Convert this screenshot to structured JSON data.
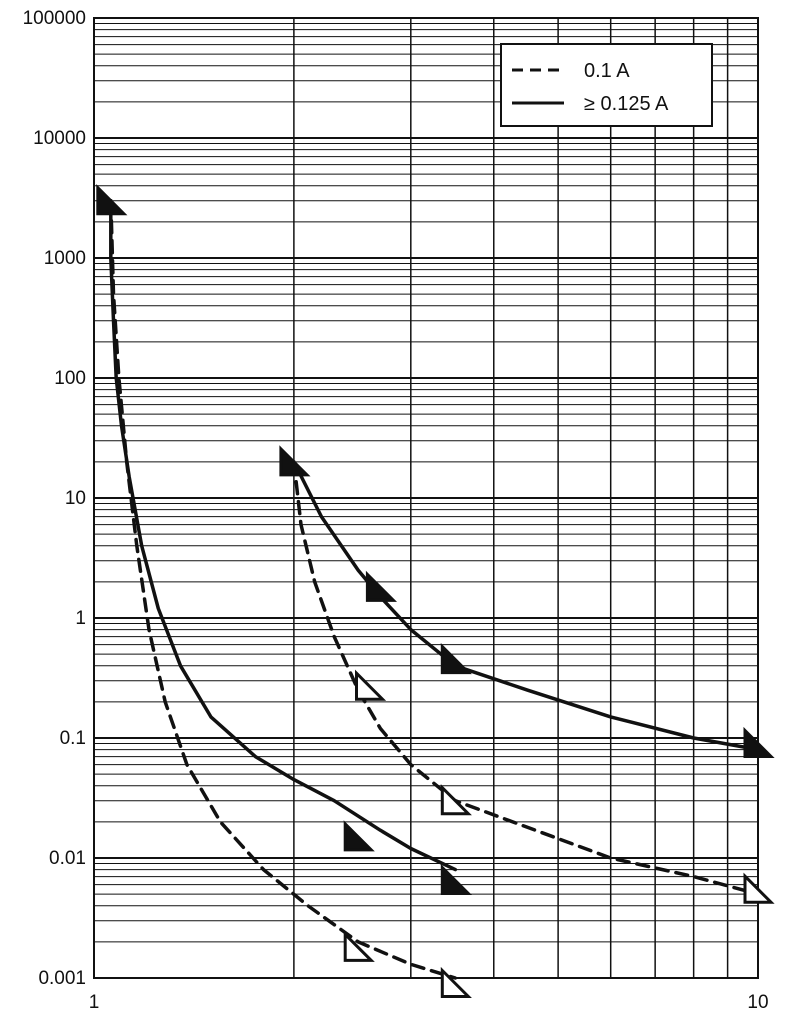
{
  "chart_data": {
    "type": "line",
    "title": "",
    "xlabel": "",
    "ylabel": "",
    "x_scale": "log",
    "y_scale": "log",
    "xlim": [
      1,
      10
    ],
    "ylim": [
      0.001,
      100000
    ],
    "grid": true,
    "legend_position": "top-right",
    "y_ticks": [
      {
        "value": 100000,
        "label": "100000"
      },
      {
        "value": 10000,
        "label": "10000"
      },
      {
        "value": 1000,
        "label": "1000"
      },
      {
        "value": 100,
        "label": "100"
      },
      {
        "value": 10,
        "label": "10"
      },
      {
        "value": 1,
        "label": "1"
      },
      {
        "value": 0.1,
        "label": "0.1"
      },
      {
        "value": 0.01,
        "label": "0.01"
      },
      {
        "value": 0.001,
        "label": "0.001"
      }
    ],
    "x_ticks": [
      {
        "value": 1,
        "label": "1"
      },
      {
        "value": 10,
        "label": "10"
      }
    ],
    "legend": [
      {
        "label": "0.1 A",
        "style": "dashed"
      },
      {
        "label": "≥ 0.125 A",
        "style": "solid"
      }
    ],
    "series": [
      {
        "style": "solid",
        "x": [
          1.06,
          1.06,
          1.07,
          1.08,
          1.1,
          1.13,
          1.18,
          1.25,
          1.35,
          1.5,
          1.75,
          2.0,
          2.3,
          2.7,
          3.0,
          3.5
        ],
        "y": [
          3000,
          1000,
          300,
          100,
          40,
          15,
          4,
          1.2,
          0.4,
          0.15,
          0.07,
          0.045,
          0.03,
          0.017,
          0.012,
          0.008
        ]
      },
      {
        "style": "dashed",
        "x": [
          1.06,
          1.07,
          1.09,
          1.12,
          1.16,
          1.21,
          1.28,
          1.38,
          1.55,
          1.8,
          2.1,
          2.5,
          3.0,
          3.5
        ],
        "y": [
          3000,
          500,
          100,
          20,
          4,
          0.8,
          0.2,
          0.06,
          0.02,
          0.008,
          0.004,
          0.002,
          0.0013,
          0.001
        ]
      },
      {
        "style": "solid",
        "x": [
          2.0,
          2.2,
          2.5,
          2.7,
          3.0,
          3.5,
          4.5,
          6.0,
          8.0,
          10.0
        ],
        "y": [
          20,
          7,
          2.5,
          1.5,
          0.8,
          0.4,
          0.25,
          0.15,
          0.1,
          0.08
        ]
      },
      {
        "style": "dashed",
        "x": [
          2.0,
          2.05,
          2.15,
          2.3,
          2.5,
          2.7,
          3.0,
          3.5,
          4.5,
          6.0,
          8.0,
          10.0
        ],
        "y": [
          20,
          6,
          2.0,
          0.7,
          0.25,
          0.12,
          0.06,
          0.03,
          0.018,
          0.01,
          0.007,
          0.005
        ]
      }
    ],
    "markers": [
      {
        "x": 1.06,
        "y": 3000,
        "fill": "filled"
      },
      {
        "x": 2.0,
        "y": 20,
        "fill": "filled"
      },
      {
        "x": 2.7,
        "y": 1.8,
        "fill": "filled"
      },
      {
        "x": 3.5,
        "y": 0.45,
        "fill": "filled"
      },
      {
        "x": 10.0,
        "y": 0.09,
        "fill": "filled"
      },
      {
        "x": 2.5,
        "y": 0.015,
        "fill": "filled"
      },
      {
        "x": 3.5,
        "y": 0.0065,
        "fill": "filled"
      },
      {
        "x": 2.6,
        "y": 0.27,
        "fill": "open"
      },
      {
        "x": 3.5,
        "y": 0.03,
        "fill": "open"
      },
      {
        "x": 10.0,
        "y": 0.0055,
        "fill": "open"
      },
      {
        "x": 2.5,
        "y": 0.0018,
        "fill": "open"
      },
      {
        "x": 3.5,
        "y": 0.0009,
        "fill": "open"
      }
    ]
  }
}
